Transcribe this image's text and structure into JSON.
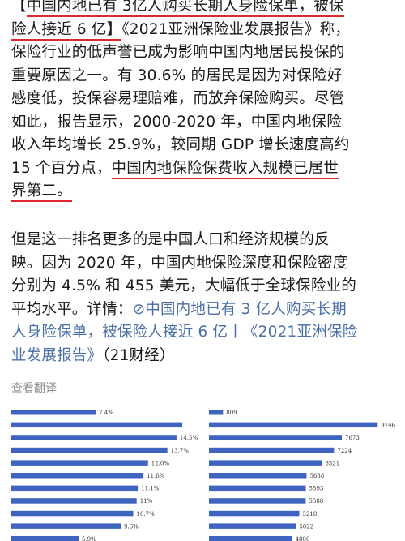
{
  "article": {
    "p1": {
      "l1_a": "【",
      "l1_b": "中国内地已有 3亿人购买长期人身险保单，被保",
      "l2_a": "险人接近 6 亿】",
      "l2_b": "《2021亚洲保险业发展报告》称，",
      "l3": "保险行业的低声誉已成为影响中国内地居民投保的",
      "l4": "重要原因之一。有 30.6% 的居民是因为对保险好",
      "l5": "感度低，投保容易理赔难，而放弃保险购买。尽管",
      "l6": "如此，报告显示，2000-2020 年，中国内地保险",
      "l7": "收入年均增长 25.9%，较同期 GDP 增长速度高约",
      "l8_a": "15 个百分点，",
      "l8_b": "中国内地保险保费收入规模已居世",
      "l9": "界第二。"
    },
    "p2": {
      "l1": "但是这一排名更多的是中国人口和经济规模的反",
      "l2": "映。因为 2020 年，中国内地保险深度和保险密度",
      "l3": "分别为 4.5% 和 455 美元，大幅低于全球保险业的",
      "l4_a": "平均水平。详情：",
      "link_icon": "⊘",
      "l4_link": "中国内地已有 3 亿人购买长期",
      "l5_link": "人身险保单，被保险人接近 6 亿丨《2021亚洲保险",
      "l6_link": "业发展报告》",
      "l6_b": "（21财经）"
    },
    "translate_label": "查看翻译"
  },
  "chart_data": [
    {
      "type": "bar",
      "orientation": "horizontal",
      "values": [
        7.4,
        15.0,
        14.5,
        13.7,
        12.0,
        11.6,
        11.1,
        11.0,
        10.7,
        9.6,
        5.9
      ],
      "labels": [
        "7.4%",
        "",
        "14.5%",
        "13.7%",
        "12.0%",
        "11.6%",
        "11.1%",
        "11%",
        "10.7%",
        "9.6%",
        "5.9%"
      ],
      "xlim": [
        0,
        15.5
      ]
    },
    {
      "type": "bar",
      "orientation": "horizontal",
      "values": [
        809,
        9746,
        7673,
        7224,
        6521,
        5638,
        5593,
        5588,
        5218,
        5022,
        4800
      ],
      "labels": [
        "809",
        "9746",
        "7673",
        "7224",
        "6521",
        "5638",
        "5593",
        "5588",
        "5218",
        "5022",
        "4800"
      ],
      "xlim": [
        0,
        10200
      ]
    }
  ]
}
